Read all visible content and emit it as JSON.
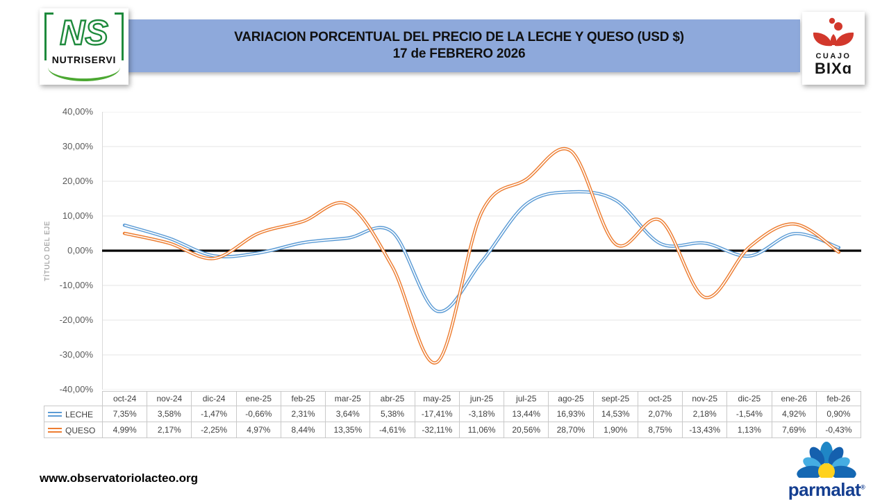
{
  "header": {
    "banner_color": "#8EA9DB",
    "title_line1": "VARIACION PORCENTUAL DEL PRECIO DE LA LECHE Y QUESO (USD $)",
    "title_line2": "17 de FEBRERO 2026",
    "logo_nutriservi": {
      "monogram": "NS",
      "name": "NUTRISERVI",
      "green": "#1E8A3C"
    },
    "logo_cuajo_bixa": {
      "line1": "CUAJO",
      "line2": "BIXɑ",
      "red": "#D2382C"
    }
  },
  "chart_data": {
    "type": "line",
    "title": "VARIACION PORCENTUAL DEL PRECIO DE LA LECHE Y QUESO (USD $) — 17 de FEBRERO 2026",
    "y_axis_title": "TÍTULO DEL EJE",
    "ylim": [
      -40,
      40
    ],
    "y_tick_step": 10,
    "y_tick_labels": [
      "40,00%",
      "30,00%",
      "20,00%",
      "10,00%",
      "0,00%",
      "-10,00%",
      "-20,00%",
      "-30,00%",
      "-40,00%"
    ],
    "grid": "horizontal-only",
    "smooth_lines": true,
    "line_style": "double-stroke (colored outline with white core)",
    "legend_position": "data-table-left",
    "categories": [
      "oct-24",
      "nov-24",
      "dic-24",
      "ene-25",
      "feb-25",
      "mar-25",
      "abr-25",
      "may-25",
      "jun-25",
      "jul-25",
      "ago-25",
      "sept-25",
      "oct-25",
      "nov-25",
      "dic-25",
      "ene-26",
      "feb-26"
    ],
    "series": [
      {
        "name": "LECHE",
        "color": "#5B9BD5",
        "values": [
          7.35,
          3.58,
          -1.47,
          -0.66,
          2.31,
          3.64,
          5.38,
          -17.41,
          -3.18,
          13.44,
          16.93,
          14.53,
          2.07,
          2.18,
          -1.54,
          4.92,
          0.9
        ],
        "value_labels": [
          "7,35%",
          "3,58%",
          "-1,47%",
          "-0,66%",
          "2,31%",
          "3,64%",
          "5,38%",
          "-17,41%",
          "-3,18%",
          "13,44%",
          "16,93%",
          "14,53%",
          "2,07%",
          "2,18%",
          "-1,54%",
          "4,92%",
          "0,90%"
        ]
      },
      {
        "name": "QUESO",
        "color": "#ED7D31",
        "values": [
          4.99,
          2.17,
          -2.25,
          4.97,
          8.44,
          13.35,
          -4.61,
          -32.11,
          11.06,
          20.56,
          28.7,
          1.9,
          8.75,
          -13.43,
          1.13,
          7.69,
          -0.43
        ],
        "value_labels": [
          "4,99%",
          "2,17%",
          "-2,25%",
          "4,97%",
          "8,44%",
          "13,35%",
          "-4,61%",
          "-32,11%",
          "11,06%",
          "20,56%",
          "28,70%",
          "1,90%",
          "8,75%",
          "-13,43%",
          "1,13%",
          "7,69%",
          "-0,43%"
        ]
      }
    ]
  },
  "footer": {
    "url": "www.observatoriolacteo.org",
    "parmalat_text": "parmalat",
    "parmalat_reg": "®"
  }
}
